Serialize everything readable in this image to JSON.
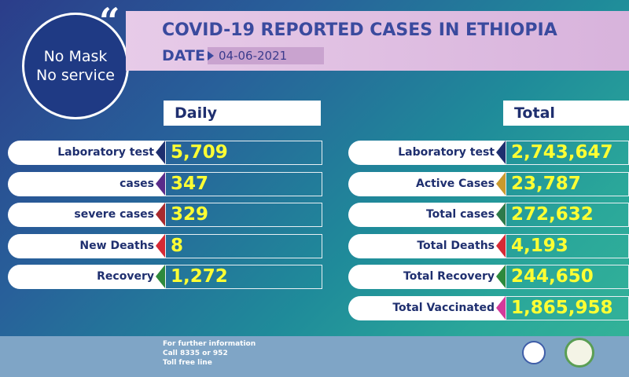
{
  "badge": {
    "line1": "No Mask",
    "line2": "No service"
  },
  "quote_mark": "“",
  "header": {
    "title": "COVID-19 REPORTED CASES IN ETHIOPIA",
    "date_label": "DATE",
    "date_value": "04-06-2021"
  },
  "daily": {
    "heading": "Daily",
    "rows": [
      {
        "label": "Laboratory test",
        "value": "5,709",
        "color": "#1e2f6f"
      },
      {
        "label": "cases",
        "value": "347",
        "color": "#5a2c8a"
      },
      {
        "label": "severe cases",
        "value": "329",
        "color": "#a82a2e"
      },
      {
        "label": "New Deaths",
        "value": "8",
        "color": "#d62a35"
      },
      {
        "label": "Recovery",
        "value": "1,272",
        "color": "#2e8a3c"
      }
    ]
  },
  "total": {
    "heading": "Total",
    "rows": [
      {
        "label": "Laboratory test",
        "value": "2,743,647",
        "color": "#1e2f6f"
      },
      {
        "label": "Active Cases",
        "value": "23,787",
        "color": "#c99a2e"
      },
      {
        "label": "Total cases",
        "value": "272,632",
        "color": "#2e7a4a"
      },
      {
        "label": "Total Deaths",
        "value": "4,193",
        "color": "#d62a35"
      },
      {
        "label": "Total Recovery",
        "value": "244,650",
        "color": "#2e8a3c"
      },
      {
        "label": "Total Vaccinated",
        "value": "1,865,958",
        "color": "#d43a9a"
      }
    ]
  },
  "footer": {
    "line1": "For further information",
    "line2": "Call 8335 or 952",
    "line3": "Toll free line"
  }
}
